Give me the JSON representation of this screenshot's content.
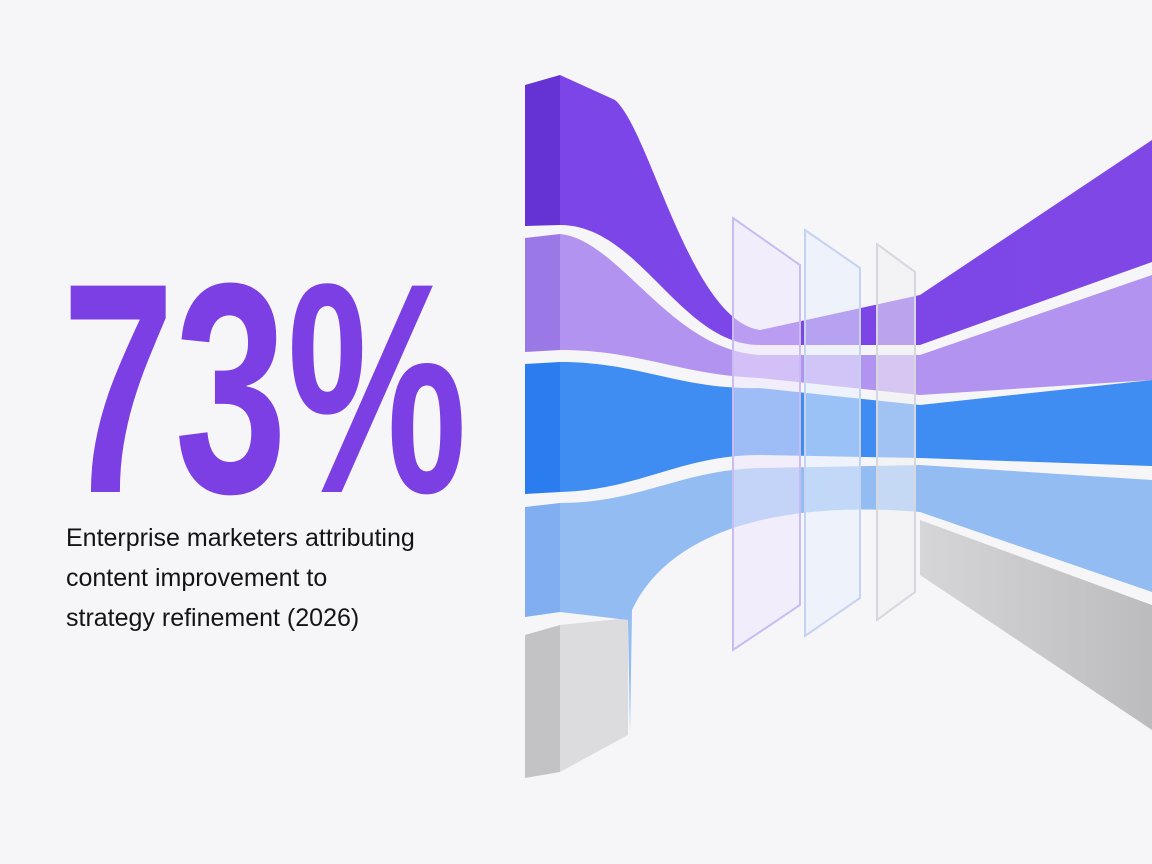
{
  "stat": "73%",
  "caption": [
    "Enterprise marketers attributing",
    "content improvement to",
    "strategy refinement (2026)"
  ]
}
